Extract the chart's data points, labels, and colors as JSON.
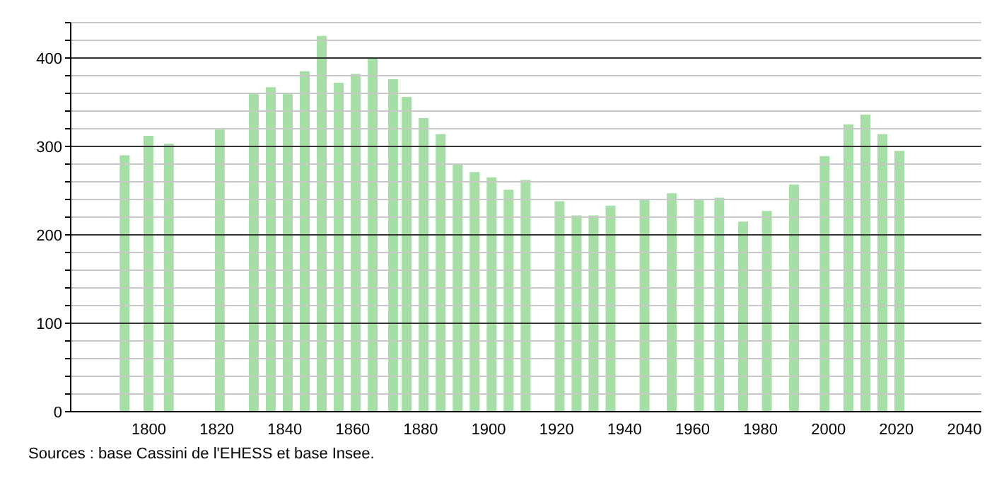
{
  "chart_data": {
    "type": "bar",
    "x": [
      1793,
      1800,
      1806,
      1821,
      1831,
      1836,
      1841,
      1846,
      1851,
      1856,
      1861,
      1866,
      1872,
      1876,
      1881,
      1886,
      1891,
      1896,
      1901,
      1906,
      1911,
      1921,
      1926,
      1931,
      1936,
      1946,
      1954,
      1962,
      1968,
      1975,
      1982,
      1990,
      1999,
      2006,
      2011,
      2016,
      2021
    ],
    "values": [
      290,
      312,
      303,
      319,
      360,
      367,
      360,
      385,
      425,
      372,
      382,
      400,
      376,
      356,
      332,
      314,
      280,
      271,
      265,
      251,
      262,
      238,
      222,
      222,
      233,
      240,
      247,
      240,
      242,
      215,
      227,
      257,
      289,
      325,
      336,
      314,
      295
    ],
    "color": "#a6dfa6",
    "xlim": [
      1777,
      2045
    ],
    "xticks": [
      1800,
      1820,
      1840,
      1860,
      1880,
      1900,
      1920,
      1940,
      1960,
      1980,
      2000,
      2020,
      2040
    ],
    "ylim": [
      0,
      440
    ],
    "yticks": [
      0,
      {
        "value": 20,
        "label": null
      },
      {
        "value": 40,
        "label": null
      },
      {
        "value": 60,
        "label": null
      },
      {
        "value": 80,
        "label": null
      },
      100,
      {
        "value": 120,
        "label": null
      },
      {
        "value": 140,
        "label": null
      },
      {
        "value": 160,
        "label": null
      },
      {
        "value": 180,
        "label": null
      },
      200,
      {
        "value": 220,
        "label": null
      },
      {
        "value": 240,
        "label": null
      },
      {
        "value": 260,
        "label": null
      },
      {
        "value": 280,
        "label": null
      },
      300,
      {
        "value": 320,
        "label": null
      },
      {
        "value": 340,
        "label": null
      },
      {
        "value": 360,
        "label": null
      },
      {
        "value": 380,
        "label": null
      },
      400,
      {
        "value": 420,
        "label": null
      },
      {
        "value": 440,
        "label": null
      }
    ],
    "grid": "y",
    "annotations": [
      "Sources : base Cassini de l'EHESS et base Insee."
    ]
  }
}
